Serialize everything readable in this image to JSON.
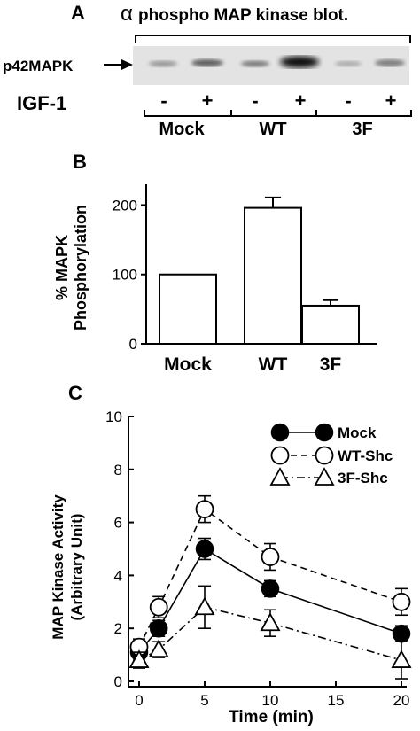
{
  "panel_a": {
    "letter": "A",
    "alpha": "α",
    "title": "phospho MAP kinase blot.",
    "band_label": "p42MAPK",
    "treatment_label": "IGF-1",
    "lane_signs": [
      "-",
      "+",
      "-",
      "+",
      "-",
      "+"
    ],
    "groups": [
      "Mock",
      "WT",
      "3F"
    ]
  },
  "panel_b": {
    "letter": "B",
    "ylabel_line1": "% MAPK",
    "ylabel_line2": "Phosphorylation",
    "yticks": [
      "0",
      "100",
      "200"
    ]
  },
  "panel_c": {
    "letter": "C",
    "ylabel_line1": "MAP Kinase Activity",
    "ylabel_line2": "(Arbitrary Unit)",
    "xlabel": "Time (min)",
    "yticks": [
      "0",
      "2",
      "4",
      "6",
      "8",
      "10"
    ],
    "xticks": [
      "0",
      "5",
      "10",
      "15",
      "20"
    ]
  },
  "chart_data": [
    {
      "type": "bar",
      "categories": [
        "Mock",
        "WT",
        "3F"
      ],
      "values": [
        100,
        196,
        55
      ],
      "errors": [
        0,
        15,
        8
      ],
      "ylabel": "% MAPK Phosphorylation",
      "ylim": [
        0,
        230
      ],
      "yticks": [
        0,
        100,
        200
      ]
    },
    {
      "type": "line",
      "xlabel": "Time (min)",
      "ylabel": "MAP Kinase Activity (Arbitrary Unit)",
      "xlim": [
        0,
        20
      ],
      "ylim": [
        0,
        10
      ],
      "legend_position": "top-right",
      "series": [
        {
          "name": "Mock",
          "marker": "filled-circle",
          "line": "solid",
          "x": [
            0,
            1.5,
            5,
            10,
            20
          ],
          "y": [
            1.1,
            2.0,
            5.0,
            3.5,
            1.8
          ],
          "err": [
            0.3,
            0.3,
            0.4,
            0.3,
            0.3
          ]
        },
        {
          "name": "WT-Shc",
          "marker": "open-circle",
          "line": "dashed",
          "x": [
            0,
            1.5,
            5,
            10,
            20
          ],
          "y": [
            1.3,
            2.8,
            6.5,
            4.7,
            3.0
          ],
          "err": [
            0.3,
            0.4,
            0.5,
            0.5,
            0.5
          ]
        },
        {
          "name": "3F-Shc",
          "marker": "open-triangle",
          "line": "dash-dot",
          "x": [
            0,
            1.5,
            5,
            10,
            20
          ],
          "y": [
            0.8,
            1.2,
            2.8,
            2.2,
            0.8
          ],
          "err": [
            0.3,
            0.3,
            0.8,
            0.5,
            0.7
          ]
        }
      ]
    }
  ]
}
